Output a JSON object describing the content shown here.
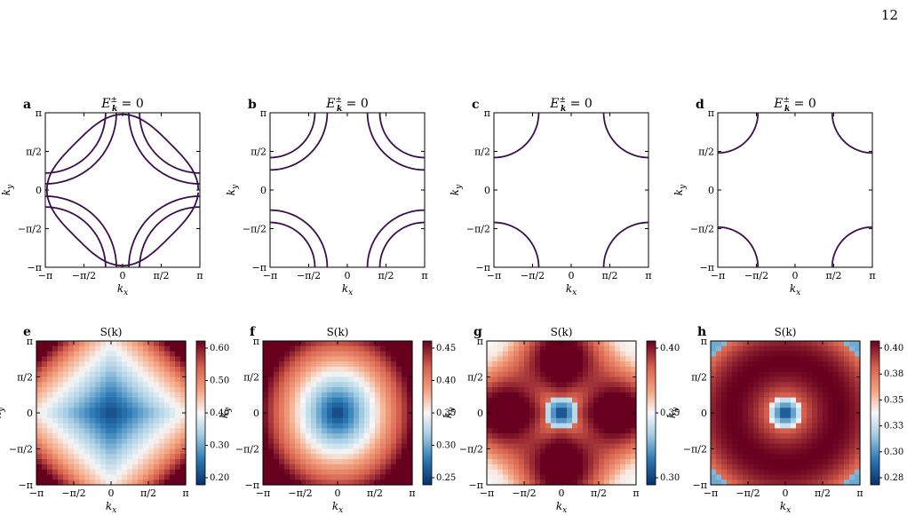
{
  "page_number": "12",
  "tick_labels": [
    "−π",
    "−π/2",
    "0",
    "π/2",
    "π"
  ],
  "axis": {
    "xlabel": "k",
    "xsub": "x",
    "ylabel": "k",
    "ysub": "y"
  },
  "contour_panels": [
    {
      "letter": "a",
      "title": "E",
      "title_sup": "±",
      "title_sub": "k",
      "title_rest": " = 0"
    },
    {
      "letter": "b",
      "title": "E",
      "title_sup": "±",
      "title_sub": "k",
      "title_rest": " = 0"
    },
    {
      "letter": "c",
      "title": "E",
      "title_sup": "±",
      "title_sub": "k",
      "title_rest": " = 0"
    },
    {
      "letter": "d",
      "title": "E",
      "title_sup": "±",
      "title_sub": "k",
      "title_rest": " = 0"
    }
  ],
  "heatmap_panels": [
    {
      "letter": "e",
      "title": "S(k)",
      "colorbar_ticks": [
        "0.60",
        "0.50",
        "0.40",
        "0.30",
        "0.20"
      ]
    },
    {
      "letter": "f",
      "title": "S(k)",
      "colorbar_ticks": [
        "0.45",
        "0.40",
        "0.35",
        "0.30",
        "0.25"
      ]
    },
    {
      "letter": "g",
      "title": "S(k)",
      "colorbar_ticks": [
        "0.40",
        "0.35",
        "0.30"
      ]
    },
    {
      "letter": "h",
      "title": "S(k)",
      "colorbar_ticks": [
        "0.40",
        "0.38",
        "0.35",
        "0.33",
        "0.30",
        "0.28"
      ]
    }
  ],
  "colors": {
    "contour": "#3b0f4f",
    "low": "#08306b",
    "mid": "#f7f7f7",
    "high": "#67001f"
  }
}
